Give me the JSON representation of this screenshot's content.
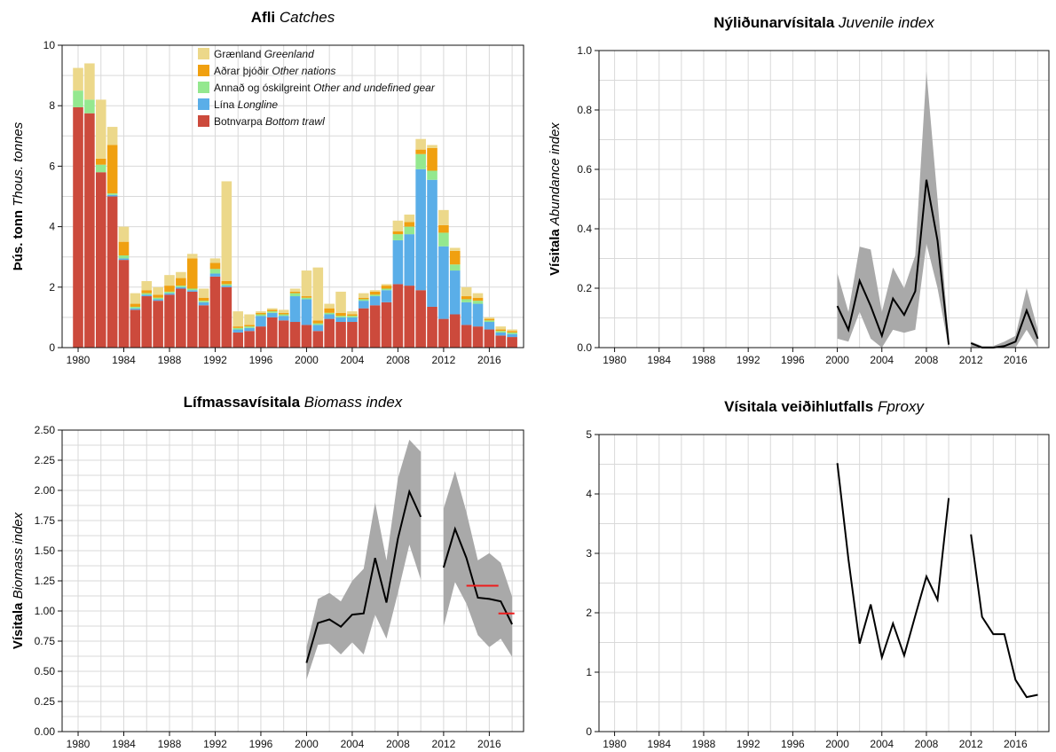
{
  "colors": {
    "greenland": "#ecd88a",
    "other_nations": "#f0a010",
    "other_gear": "#94e88f",
    "longline": "#5aaee8",
    "bottom_trawl": "#cc4a3c",
    "band": "#a9a9a9",
    "line": "#000000",
    "reference": "#ee1c1c"
  },
  "chart_data": [
    {
      "id": "catches",
      "type": "bar",
      "title": {
        "main": "Afli ",
        "italic": "Catches"
      },
      "ylabel": {
        "main": "Þús. tonn ",
        "italic": "Thous. tonnes"
      },
      "xlim": [
        1978.6,
        2019
      ],
      "ylim": [
        0,
        10
      ],
      "xticks": [
        1980,
        1984,
        1988,
        1992,
        1996,
        2000,
        2004,
        2008,
        2012,
        2016
      ],
      "yticks": [
        0,
        2,
        4,
        6,
        8,
        10
      ],
      "x": [
        1980,
        1981,
        1982,
        1983,
        1984,
        1985,
        1986,
        1987,
        1988,
        1989,
        1990,
        1991,
        1992,
        1993,
        1994,
        1995,
        1996,
        1997,
        1998,
        1999,
        2000,
        2001,
        2002,
        2003,
        2004,
        2005,
        2006,
        2007,
        2008,
        2009,
        2010,
        2011,
        2012,
        2013,
        2014,
        2015,
        2016,
        2017,
        2018
      ],
      "series": [
        {
          "key": "bottom_trawl",
          "name": "Botnvarpa ",
          "name_italic": "Bottom trawl",
          "values": [
            7.95,
            7.75,
            5.8,
            5.0,
            2.9,
            1.25,
            1.7,
            1.55,
            1.75,
            1.95,
            1.85,
            1.4,
            2.35,
            2.0,
            0.5,
            0.55,
            0.7,
            1.0,
            0.9,
            0.85,
            0.75,
            0.55,
            0.95,
            0.85,
            0.85,
            1.3,
            1.4,
            1.5,
            2.1,
            2.05,
            1.9,
            1.35,
            0.95,
            1.1,
            0.75,
            0.7,
            0.6,
            0.4,
            0.35
          ]
        },
        {
          "key": "longline",
          "name": "Lína ",
          "name_italic": "Longline",
          "values": [
            0,
            0,
            0,
            0.05,
            0.05,
            0.05,
            0.05,
            0.05,
            0.05,
            0.05,
            0.05,
            0.1,
            0.1,
            0.05,
            0.1,
            0.1,
            0.35,
            0.15,
            0.15,
            0.85,
            0.85,
            0.2,
            0.15,
            0.15,
            0.15,
            0.25,
            0.3,
            0.4,
            1.45,
            1.7,
            4.0,
            4.2,
            2.4,
            1.45,
            0.75,
            0.75,
            0.25,
            0.1,
            0.1
          ]
        },
        {
          "key": "other_gear",
          "name": "Annað og óskilgreint ",
          "name_italic": "Other and undefined gear",
          "values": [
            0.55,
            0.45,
            0.25,
            0.05,
            0.1,
            0.05,
            0.05,
            0.05,
            0.05,
            0.05,
            0.05,
            0.05,
            0.15,
            0.05,
            0.05,
            0.05,
            0.05,
            0.05,
            0.05,
            0.1,
            0.05,
            0.05,
            0.05,
            0.05,
            0.05,
            0.05,
            0.05,
            0.05,
            0.2,
            0.25,
            0.5,
            0.3,
            0.45,
            0.2,
            0.1,
            0.1,
            0.05,
            0.05,
            0.05
          ]
        },
        {
          "key": "other_nations",
          "name": "Aðrar þjóðir ",
          "name_italic": "Other nations",
          "values": [
            0,
            0,
            0.2,
            1.6,
            0.45,
            0.1,
            0.1,
            0.1,
            0.2,
            0.25,
            1.0,
            0.1,
            0.2,
            0.1,
            0.05,
            0.05,
            0.05,
            0.05,
            0.05,
            0.05,
            0.05,
            0.1,
            0.15,
            0.1,
            0.05,
            0.05,
            0.1,
            0.1,
            0.1,
            0.15,
            0.15,
            0.75,
            0.25,
            0.45,
            0.1,
            0.1,
            0.05,
            0.05,
            0.05
          ]
        },
        {
          "key": "greenland",
          "name": "Grænland ",
          "name_italic": "Greenland",
          "values": [
            0.75,
            1.2,
            1.95,
            0.6,
            0.5,
            0.35,
            0.3,
            0.25,
            0.35,
            0.2,
            0.15,
            0.3,
            0.15,
            3.3,
            0.5,
            0.35,
            0.05,
            0.05,
            0.1,
            0.1,
            0.85,
            1.75,
            0.15,
            0.7,
            0.1,
            0.15,
            0.05,
            0.05,
            0.35,
            0.25,
            0.35,
            0.1,
            0.5,
            0.1,
            0.3,
            0.15,
            0.05,
            0.1,
            0.05
          ]
        }
      ],
      "legend_order": [
        "greenland",
        "other_nations",
        "other_gear",
        "longline",
        "bottom_trawl"
      ],
      "legend": "top-center",
      "grid": true
    },
    {
      "id": "juvenile",
      "type": "line",
      "title": {
        "main": "Nýliðunarvísitala ",
        "italic": "Juvenile index"
      },
      "ylabel": {
        "main": "Vísitala ",
        "italic": "Abundance index"
      },
      "xlim": [
        1978.6,
        2019
      ],
      "ylim": [
        0,
        1.0
      ],
      "xticks": [
        1980,
        1984,
        1988,
        1992,
        1996,
        2000,
        2004,
        2008,
        2012,
        2016
      ],
      "yticks": [
        0.0,
        0.2,
        0.4,
        0.6,
        0.8,
        1.0
      ],
      "ytick_labels": [
        "0.0",
        "0.2",
        "0.4",
        "0.6",
        "0.8",
        "1.0"
      ],
      "segments": [
        {
          "x": [
            2000,
            2001,
            2002,
            2003,
            2004,
            2005,
            2006,
            2007,
            2008,
            2009,
            2010
          ],
          "y": [
            0.14,
            0.06,
            0.225,
            0.14,
            0.04,
            0.165,
            0.11,
            0.19,
            0.565,
            0.36,
            0.01
          ],
          "lower": [
            0.03,
            0.02,
            0.12,
            0.03,
            0.0,
            0.06,
            0.05,
            0.06,
            0.35,
            0.2,
            0.0
          ],
          "upper": [
            0.25,
            0.12,
            0.34,
            0.33,
            0.12,
            0.27,
            0.2,
            0.31,
            0.93,
            0.5,
            0.03
          ]
        },
        {
          "x": [
            2012,
            2013,
            2014,
            2015,
            2016,
            2017,
            2018
          ],
          "y": [
            0.015,
            0.0,
            0.0,
            0.005,
            0.02,
            0.125,
            0.03
          ],
          "lower": [
            0.0,
            0.0,
            0.0,
            0.0,
            0.0,
            0.06,
            0.0
          ],
          "upper": [
            0.02,
            0.005,
            0.005,
            0.02,
            0.04,
            0.2,
            0.06
          ]
        }
      ],
      "grid": true
    },
    {
      "id": "biomass",
      "type": "line",
      "title": {
        "main": "Lífmassavísitala ",
        "italic": "Biomass index"
      },
      "ylabel": {
        "main": "Vísitala ",
        "italic": "Biomass index"
      },
      "xlim": [
        1978.6,
        2019
      ],
      "ylim": [
        0,
        2.5
      ],
      "xticks": [
        1980,
        1984,
        1988,
        1992,
        1996,
        2000,
        2004,
        2008,
        2012,
        2016
      ],
      "yticks": [
        0,
        0.25,
        0.5,
        0.75,
        1.0,
        1.25,
        1.5,
        1.75,
        2.0,
        2.25,
        2.5
      ],
      "ytick_labels": [
        "0.00",
        "0.25",
        "0.50",
        "0.75",
        "1.00",
        "1.25",
        "1.50",
        "1.75",
        "2.00",
        "2.25",
        "2.50"
      ],
      "segments": [
        {
          "x": [
            2000,
            2001,
            2002,
            2003,
            2004,
            2005,
            2006,
            2007,
            2008,
            2009,
            2010
          ],
          "y": [
            0.57,
            0.9,
            0.93,
            0.87,
            0.97,
            0.98,
            1.44,
            1.07,
            1.6,
            1.99,
            1.78
          ],
          "lower": [
            0.43,
            0.72,
            0.73,
            0.64,
            0.74,
            0.64,
            0.97,
            0.77,
            1.15,
            1.55,
            1.26
          ],
          "upper": [
            0.7,
            1.1,
            1.15,
            1.08,
            1.25,
            1.35,
            1.9,
            1.42,
            2.1,
            2.42,
            2.32
          ]
        },
        {
          "x": [
            2012,
            2013,
            2014,
            2015,
            2016,
            2017,
            2018
          ],
          "y": [
            1.36,
            1.68,
            1.44,
            1.11,
            1.1,
            1.08,
            0.89
          ],
          "lower": [
            0.87,
            1.24,
            1.06,
            0.8,
            0.7,
            0.77,
            0.62
          ],
          "upper": [
            1.85,
            2.16,
            1.82,
            1.42,
            1.48,
            1.4,
            1.12
          ]
        }
      ],
      "reference_lines": [
        {
          "x": [
            2014,
            2016.8
          ],
          "y": 1.21
        },
        {
          "x": [
            2016.8,
            2018.2
          ],
          "y": 0.98
        }
      ],
      "grid": true
    },
    {
      "id": "fproxy",
      "type": "line",
      "title": {
        "main": "Vísitala veiðihlutfalls ",
        "italic": "Fproxy"
      },
      "ylabel": {
        "main": "",
        "italic": ""
      },
      "xlim": [
        1978.6,
        2019
      ],
      "ylim": [
        0,
        5
      ],
      "xticks": [
        1980,
        1984,
        1988,
        1992,
        1996,
        2000,
        2004,
        2008,
        2012,
        2016
      ],
      "yticks": [
        0,
        1,
        2,
        3,
        4,
        5
      ],
      "segments": [
        {
          "x": [
            2000,
            2001,
            2002,
            2003,
            2004,
            2005,
            2006,
            2007,
            2008,
            2009,
            2010
          ],
          "y": [
            4.52,
            2.9,
            1.48,
            2.14,
            1.25,
            1.82,
            1.28,
            1.95,
            2.61,
            2.22,
            3.93
          ]
        },
        {
          "x": [
            2012,
            2013,
            2014,
            2015,
            2016,
            2017,
            2018
          ],
          "y": [
            3.32,
            1.93,
            1.64,
            1.64,
            0.87,
            0.58,
            0.62
          ]
        }
      ],
      "grid": true
    }
  ]
}
